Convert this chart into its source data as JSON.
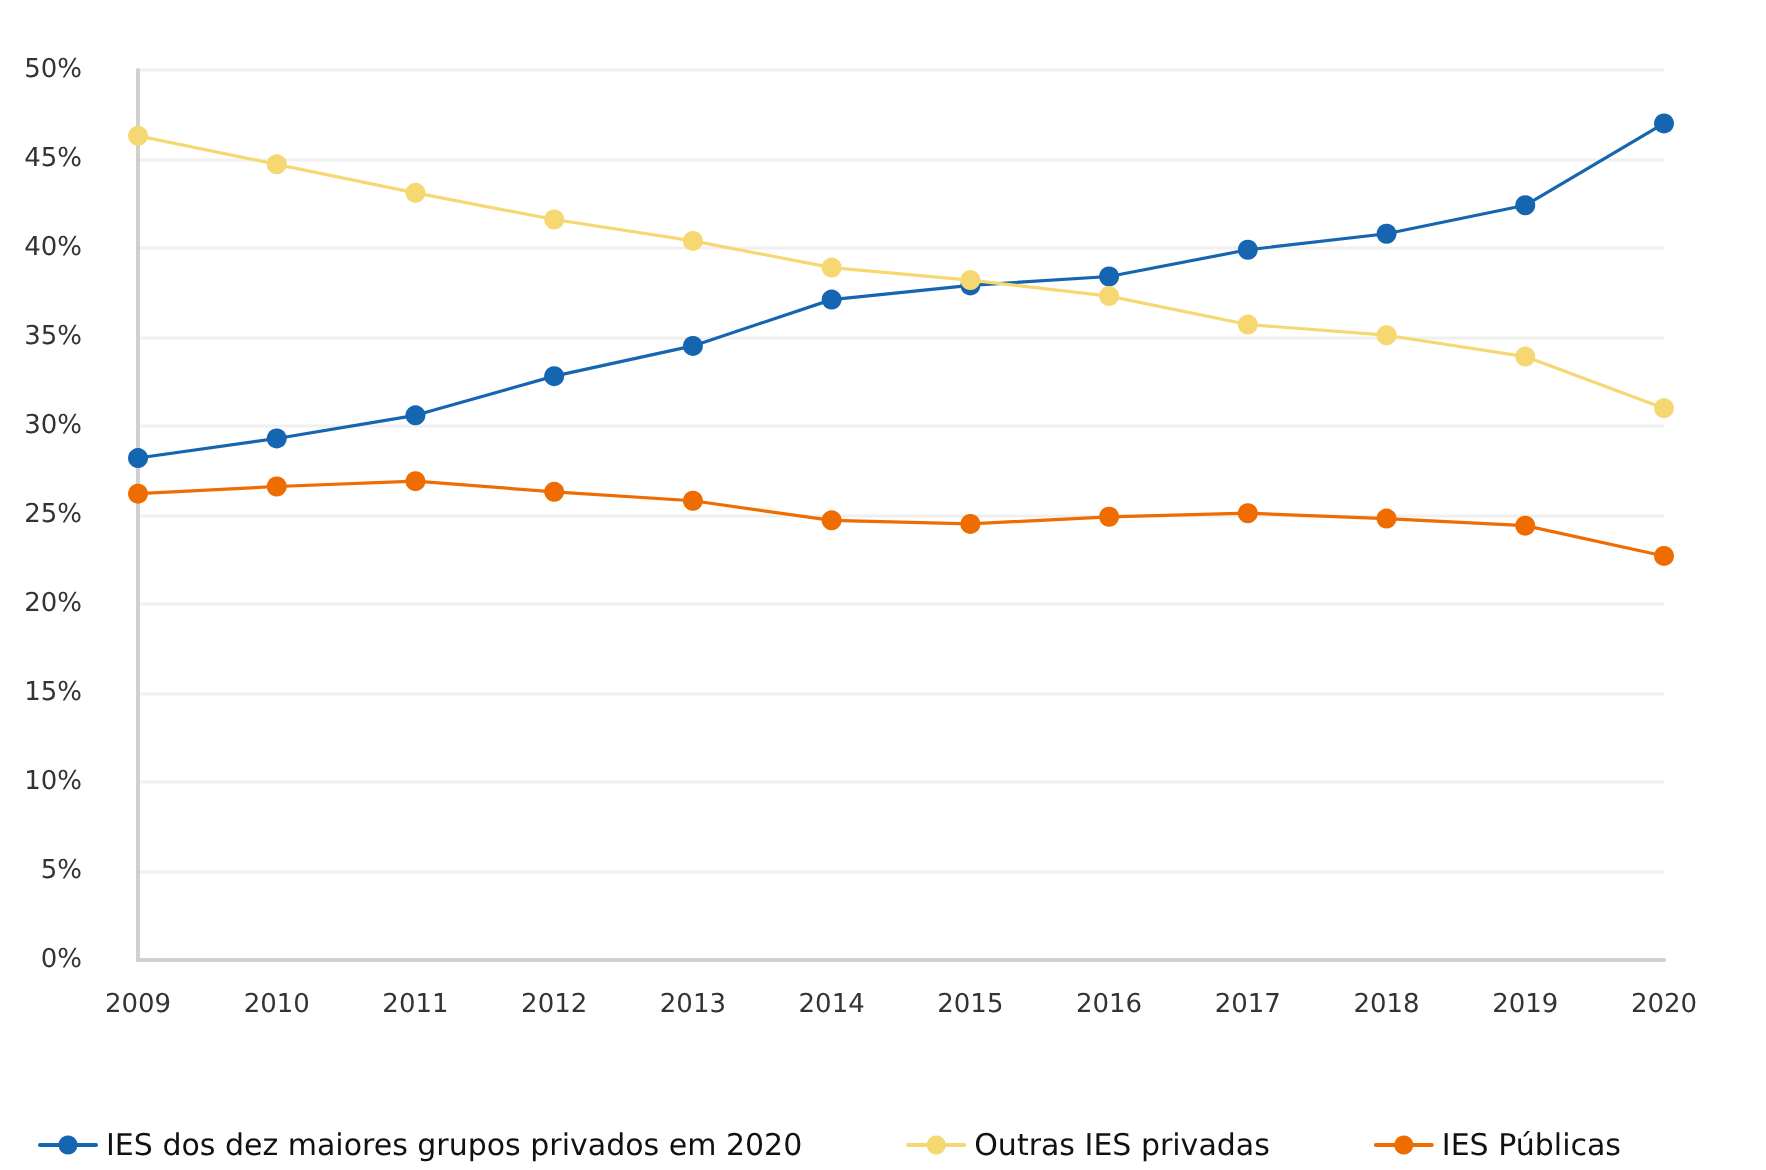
{
  "chart_data": {
    "type": "line",
    "categories": [
      "2009",
      "2010",
      "2011",
      "2012",
      "2013",
      "2014",
      "2015",
      "2016",
      "2017",
      "2018",
      "2019",
      "2020"
    ],
    "series": [
      {
        "name": "IES dos dez maiores grupos privados em 2020",
        "color": "#1565b0",
        "values": [
          28.2,
          29.3,
          30.6,
          32.8,
          34.5,
          37.1,
          37.9,
          38.4,
          39.9,
          40.8,
          42.4,
          47.0
        ]
      },
      {
        "name": "Outras IES privadas",
        "color": "#f6d872",
        "values": [
          46.3,
          44.7,
          43.1,
          41.6,
          40.4,
          38.9,
          38.2,
          37.3,
          35.7,
          35.1,
          33.9,
          31.0
        ]
      },
      {
        "name": "IES Públicas",
        "color": "#ef6c00",
        "values": [
          26.2,
          26.6,
          26.9,
          26.3,
          25.8,
          24.7,
          24.5,
          24.9,
          25.1,
          24.8,
          24.4,
          22.7
        ]
      }
    ],
    "ylim": [
      0,
      50
    ],
    "yticks": [
      {
        "value": 0,
        "label": "0%"
      },
      {
        "value": 5,
        "label": "5%"
      },
      {
        "value": 10,
        "label": "10%"
      },
      {
        "value": 15,
        "label": "15%"
      },
      {
        "value": 20,
        "label": "20%"
      },
      {
        "value": 25,
        "label": "25%"
      },
      {
        "value": 30,
        "label": "30%"
      },
      {
        "value": 35,
        "label": "35%"
      },
      {
        "value": 40,
        "label": "40%"
      },
      {
        "value": 45,
        "label": "45%"
      },
      {
        "value": 50,
        "label": "50%"
      }
    ],
    "grid": "y",
    "legend": "bottom",
    "marker": "circle",
    "line_style": "solid"
  }
}
